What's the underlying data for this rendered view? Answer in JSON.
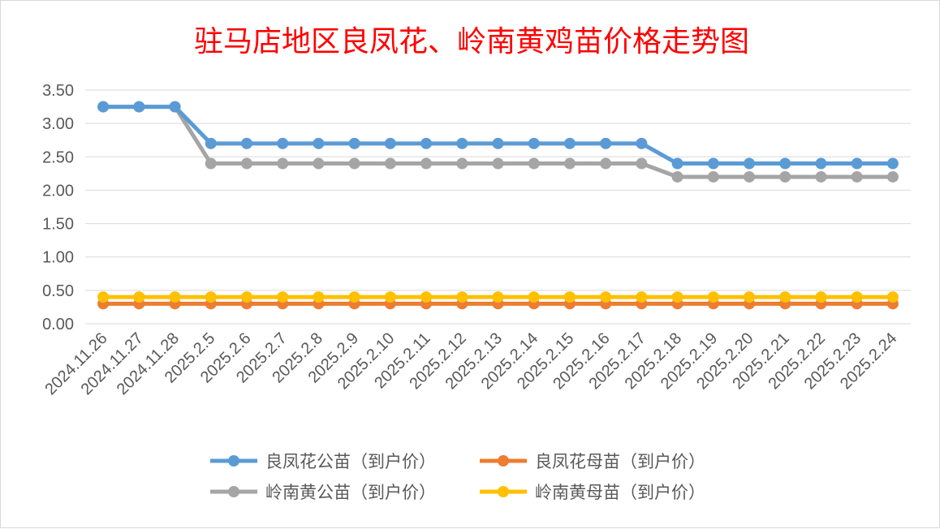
{
  "chart_data": {
    "type": "line",
    "title": "驻马店地区良凤花、岭南黄鸡苗价格走势图",
    "xlabel": "",
    "ylabel": "",
    "ylim": [
      0,
      3.5
    ],
    "yticks": [
      "0.00",
      "0.50",
      "1.00",
      "1.50",
      "2.00",
      "2.50",
      "3.00",
      "3.50"
    ],
    "grid": true,
    "legend_position": "bottom",
    "categories": [
      "2024.11.26",
      "2024.11.27",
      "2024.11.28",
      "2025.2.5",
      "2025.2.6",
      "2025.2.7",
      "2025.2.8",
      "2025.2.9",
      "2025.2.10",
      "2025.2.11",
      "2025.2.12",
      "2025.2.13",
      "2025.2.14",
      "2025.2.15",
      "2025.2.16",
      "2025.2.17",
      "2025.2.18",
      "2025.2.19",
      "2025.2.20",
      "2025.2.21",
      "2025.2.22",
      "2025.2.23",
      "2025.2.24"
    ],
    "series": [
      {
        "name": "良凤花公苗（到户价）",
        "color": "#5b9bd5",
        "values": [
          3.25,
          3.25,
          3.25,
          2.7,
          2.7,
          2.7,
          2.7,
          2.7,
          2.7,
          2.7,
          2.7,
          2.7,
          2.7,
          2.7,
          2.7,
          2.7,
          2.4,
          2.4,
          2.4,
          2.4,
          2.4,
          2.4,
          2.4
        ]
      },
      {
        "name": "良凤花母苗（到户价）",
        "color": "#ed7d31",
        "values": [
          0.3,
          0.3,
          0.3,
          0.3,
          0.3,
          0.3,
          0.3,
          0.3,
          0.3,
          0.3,
          0.3,
          0.3,
          0.3,
          0.3,
          0.3,
          0.3,
          0.3,
          0.3,
          0.3,
          0.3,
          0.3,
          0.3,
          0.3
        ]
      },
      {
        "name": "岭南黄公苗（到户价）",
        "color": "#a5a5a5",
        "values": [
          3.25,
          3.25,
          3.25,
          2.4,
          2.4,
          2.4,
          2.4,
          2.4,
          2.4,
          2.4,
          2.4,
          2.4,
          2.4,
          2.4,
          2.4,
          2.4,
          2.2,
          2.2,
          2.2,
          2.2,
          2.2,
          2.2,
          2.2
        ]
      },
      {
        "name": "岭南黄母苗（到户价）",
        "color": "#ffc000",
        "values": [
          0.4,
          0.4,
          0.4,
          0.4,
          0.4,
          0.4,
          0.4,
          0.4,
          0.4,
          0.4,
          0.4,
          0.4,
          0.4,
          0.4,
          0.4,
          0.4,
          0.4,
          0.4,
          0.4,
          0.4,
          0.4,
          0.4,
          0.4
        ]
      }
    ]
  }
}
